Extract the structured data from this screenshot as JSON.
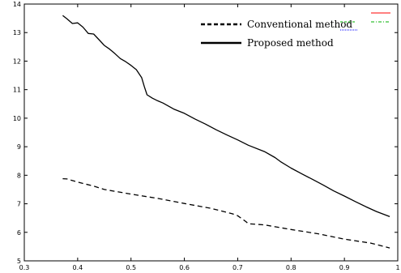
{
  "chart_data": {
    "type": "line",
    "title": "",
    "xlabel": "",
    "ylabel": "",
    "xlim": [
      0.3,
      1.0
    ],
    "ylim": [
      5,
      14
    ],
    "xticks": [
      0.3,
      0.4,
      0.5,
      0.6,
      0.7,
      0.8,
      0.9,
      1
    ],
    "xtick_labels": [
      "0.3",
      "0.4",
      "0.5",
      "0.6",
      "0.7",
      "0.8",
      "0.9",
      "1"
    ],
    "yticks": [
      5,
      6,
      7,
      8,
      9,
      10,
      11,
      12,
      13,
      14
    ],
    "ytick_labels": [
      "5",
      "6",
      "7",
      "8",
      "9",
      "10",
      "11",
      "12",
      "13",
      "14"
    ],
    "grid": false,
    "legend": "top-right",
    "series": [
      {
        "name": "Conventional method",
        "style": "dashed",
        "color": "#000000",
        "x": [
          0.372,
          0.38,
          0.4,
          0.43,
          0.45,
          0.5,
          0.55,
          0.6,
          0.65,
          0.69,
          0.7,
          0.715,
          0.72,
          0.75,
          0.8,
          0.85,
          0.9,
          0.95,
          0.985
        ],
        "y": [
          7.88,
          7.87,
          7.76,
          7.62,
          7.5,
          7.34,
          7.19,
          7.01,
          6.84,
          6.65,
          6.58,
          6.38,
          6.3,
          6.26,
          6.1,
          5.95,
          5.76,
          5.62,
          5.45
        ]
      },
      {
        "name": "Proposed method",
        "style": "solid",
        "color": "#000000",
        "x": [
          0.372,
          0.38,
          0.39,
          0.4,
          0.41,
          0.42,
          0.43,
          0.44,
          0.45,
          0.46,
          0.47,
          0.48,
          0.49,
          0.5,
          0.51,
          0.52,
          0.525,
          0.53,
          0.54,
          0.55,
          0.56,
          0.58,
          0.6,
          0.62,
          0.64,
          0.66,
          0.68,
          0.7,
          0.72,
          0.75,
          0.77,
          0.78,
          0.8,
          0.82,
          0.84,
          0.86,
          0.88,
          0.9,
          0.92,
          0.94,
          0.96,
          0.985
        ],
        "y": [
          13.6,
          13.48,
          13.32,
          13.34,
          13.19,
          12.97,
          12.95,
          12.75,
          12.55,
          12.42,
          12.26,
          12.09,
          11.98,
          11.85,
          11.7,
          11.42,
          11.1,
          10.82,
          10.7,
          10.61,
          10.53,
          10.32,
          10.17,
          9.97,
          9.79,
          9.59,
          9.41,
          9.24,
          9.05,
          8.83,
          8.62,
          8.48,
          8.25,
          8.05,
          7.86,
          7.66,
          7.45,
          7.27,
          7.08,
          6.9,
          6.73,
          6.55
        ]
      }
    ]
  },
  "legend_extra_colors": [
    "#ff0000",
    "#00b000",
    "#0000ff"
  ]
}
